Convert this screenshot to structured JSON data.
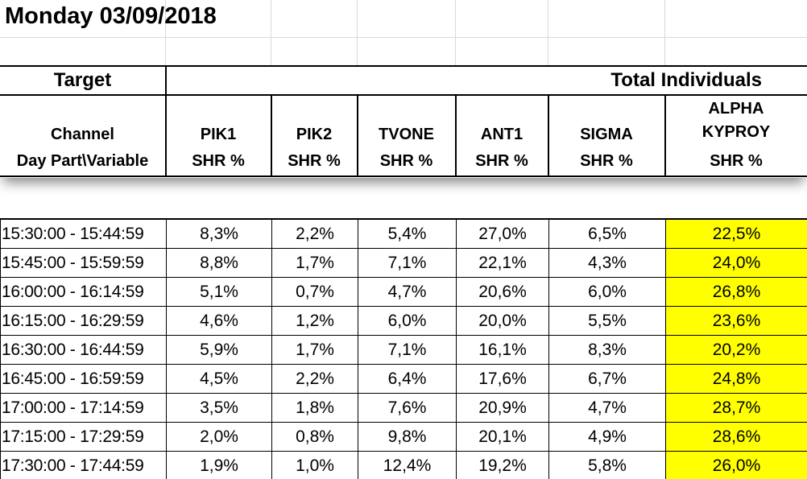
{
  "sheet": {
    "title": "Monday 03/09/2018"
  },
  "header": {
    "target_label": "Target",
    "target_value": "Total Individuals",
    "channel_label": "Channel",
    "daypart_label": "Day Part\\Variable",
    "channels": [
      "PIK1",
      "PIK2",
      "TVONE",
      "ANT1",
      "SIGMA",
      "ALPHA KYPROY"
    ],
    "channel_line1": [
      "",
      "",
      "",
      "",
      "",
      "ALPHA"
    ],
    "channel_line2": [
      "PIK1",
      "PIK2",
      "TVONE",
      "ANT1",
      "SIGMA",
      "KYPROY"
    ],
    "variables": [
      "SHR %",
      "SHR %",
      "SHR %",
      "SHR %",
      "SHR %",
      "SHR %"
    ]
  },
  "highlight": {
    "column": "ALPHA KYPROY",
    "color": "#ffff00"
  },
  "rows": [
    {
      "daypart": "15:30:00 - 15:44:59",
      "values": [
        "8,3%",
        "2,2%",
        "5,4%",
        "27,0%",
        "6,5%",
        "22,5%"
      ]
    },
    {
      "daypart": "15:45:00 - 15:59:59",
      "values": [
        "8,8%",
        "1,7%",
        "7,1%",
        "22,1%",
        "4,3%",
        "24,0%"
      ]
    },
    {
      "daypart": "16:00:00 - 16:14:59",
      "values": [
        "5,1%",
        "0,7%",
        "4,7%",
        "20,6%",
        "6,0%",
        "26,8%"
      ]
    },
    {
      "daypart": "16:15:00 - 16:29:59",
      "values": [
        "4,6%",
        "1,2%",
        "6,0%",
        "20,0%",
        "5,5%",
        "23,6%"
      ]
    },
    {
      "daypart": "16:30:00 - 16:44:59",
      "values": [
        "5,9%",
        "1,7%",
        "7,1%",
        "16,1%",
        "8,3%",
        "20,2%"
      ]
    },
    {
      "daypart": "16:45:00 - 16:59:59",
      "values": [
        "4,5%",
        "2,2%",
        "6,4%",
        "17,6%",
        "6,7%",
        "24,8%"
      ]
    },
    {
      "daypart": "17:00:00 - 17:14:59",
      "values": [
        "3,5%",
        "1,8%",
        "7,6%",
        "20,9%",
        "4,7%",
        "28,7%"
      ]
    },
    {
      "daypart": "17:15:00 - 17:29:59",
      "values": [
        "2,0%",
        "0,8%",
        "9,8%",
        "20,1%",
        "4,9%",
        "28,6%"
      ]
    },
    {
      "daypart": "17:30:00 - 17:44:59",
      "values": [
        "1,9%",
        "1,0%",
        "12,4%",
        "19,2%",
        "5,8%",
        "26,0%"
      ]
    }
  ]
}
